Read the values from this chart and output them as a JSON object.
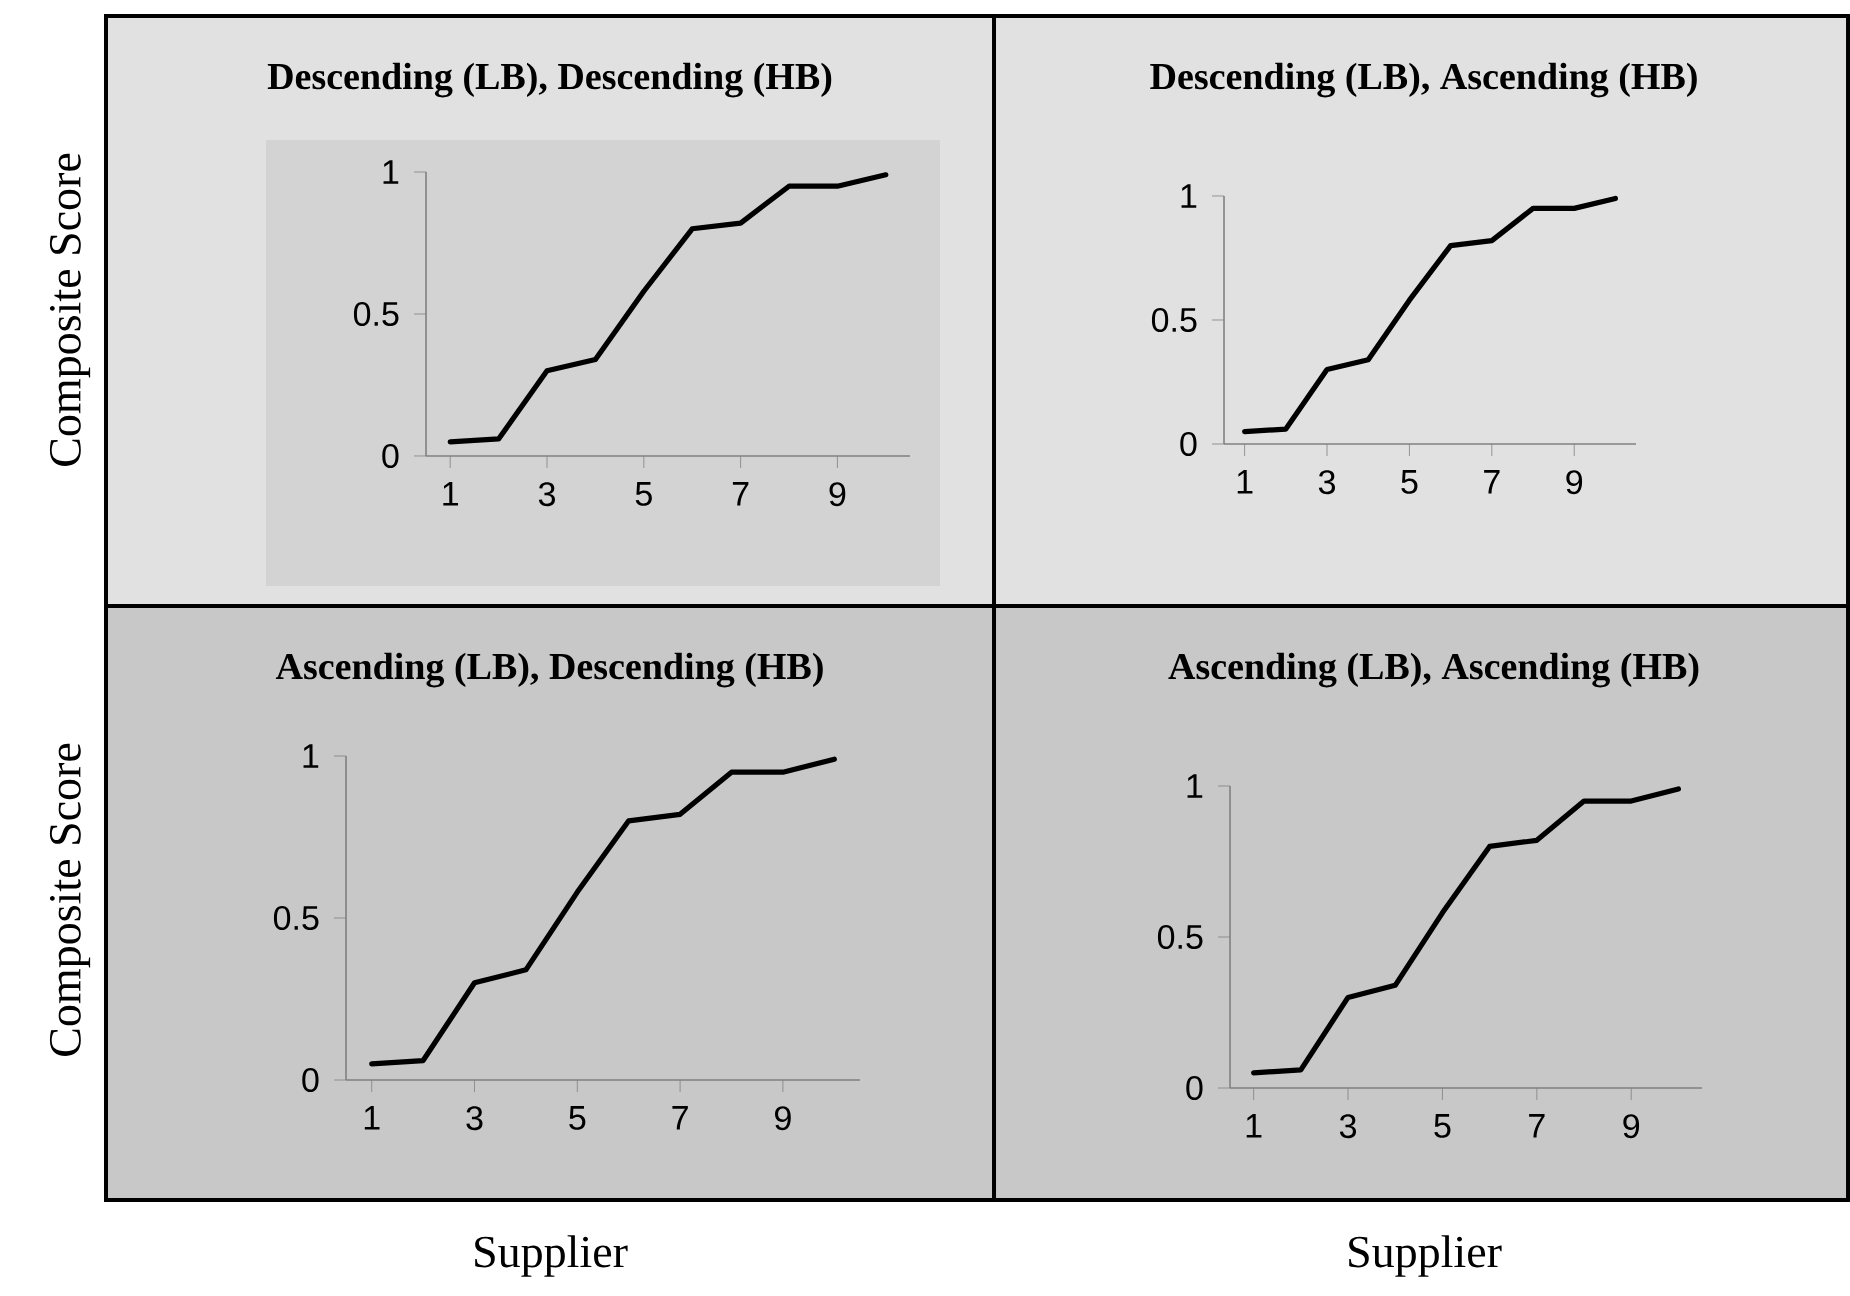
{
  "chart_data": [
    {
      "type": "line",
      "title": "Descending (LB), Descending (HB)",
      "ylabel": "Composite Score",
      "x": [
        1,
        2,
        3,
        4,
        5,
        6,
        7,
        8,
        9,
        10
      ],
      "values": [
        0.05,
        0.06,
        0.3,
        0.34,
        0.58,
        0.8,
        0.82,
        0.95,
        0.95,
        0.99
      ],
      "color": "#000000",
      "xlim": [
        0.5,
        10.5
      ],
      "ylim": [
        0,
        1
      ],
      "xticks": [
        1,
        3,
        5,
        7,
        9
      ],
      "yticks": [
        0,
        0.5,
        1
      ]
    },
    {
      "type": "line",
      "title": "Descending (LB), Ascending (HB)",
      "x": [
        1,
        2,
        3,
        4,
        5,
        6,
        7,
        8,
        9,
        10
      ],
      "values": [
        0.05,
        0.06,
        0.3,
        0.34,
        0.58,
        0.8,
        0.82,
        0.95,
        0.95,
        0.99
      ],
      "color": "#000000",
      "xlim": [
        0.5,
        10.5
      ],
      "ylim": [
        0,
        1
      ],
      "xticks": [
        1,
        3,
        5,
        7,
        9
      ],
      "yticks": [
        0,
        0.5,
        1
      ]
    },
    {
      "type": "line",
      "title": "Ascending (LB), Descending (HB)",
      "xlabel": "Supplier",
      "ylabel": "Composite Score",
      "x": [
        1,
        2,
        3,
        4,
        5,
        6,
        7,
        8,
        9,
        10
      ],
      "values": [
        0.05,
        0.06,
        0.3,
        0.34,
        0.58,
        0.8,
        0.82,
        0.95,
        0.95,
        0.99
      ],
      "color": "#000000",
      "xlim": [
        0.5,
        10.5
      ],
      "ylim": [
        0,
        1
      ],
      "xticks": [
        1,
        3,
        5,
        7,
        9
      ],
      "yticks": [
        0,
        0.5,
        1
      ]
    },
    {
      "type": "line",
      "title": "Ascending (LB), Ascending (HB)",
      "xlabel": "Supplier",
      "x": [
        1,
        2,
        3,
        4,
        5,
        6,
        7,
        8,
        9,
        10
      ],
      "values": [
        0.05,
        0.06,
        0.3,
        0.34,
        0.58,
        0.8,
        0.82,
        0.95,
        0.95,
        0.99
      ],
      "color": "#000000",
      "xlim": [
        0.5,
        10.5
      ],
      "ylim": [
        0,
        1
      ],
      "xticks": [
        1,
        3,
        5,
        7,
        9
      ],
      "yticks": [
        0,
        0.5,
        1
      ]
    }
  ]
}
